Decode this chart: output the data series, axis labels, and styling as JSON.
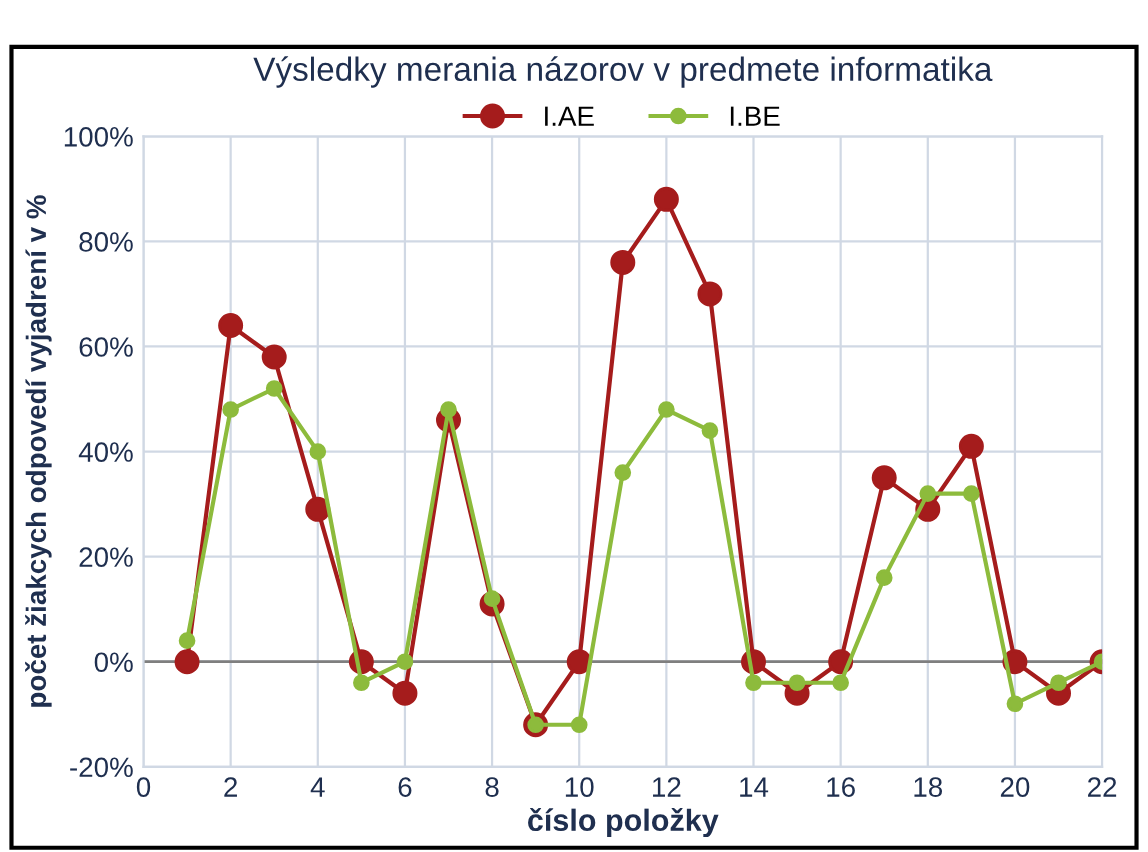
{
  "chart_data": {
    "type": "line",
    "title": "Výsledky merania názorov v predmete informatika",
    "xlabel": "číslo položky",
    "ylabel": "počet žiakcych odpovedí vyjadrení v %",
    "x": [
      1,
      2,
      3,
      4,
      5,
      6,
      7,
      8,
      9,
      10,
      11,
      12,
      13,
      14,
      15,
      16,
      17,
      18,
      19,
      20,
      21,
      22
    ],
    "series": [
      {
        "name": "I.AE",
        "color": "#a51c1c",
        "values": [
          0,
          64,
          58,
          29,
          0,
          -6,
          46,
          11,
          -12,
          0,
          76,
          88,
          70,
          0,
          -6,
          0,
          35,
          29,
          41,
          0,
          -6,
          0
        ]
      },
      {
        "name": "I.BE",
        "color": "#8dbb3c",
        "values": [
          4,
          48,
          52,
          40,
          -4,
          0,
          48,
          12,
          -12,
          -12,
          36,
          48,
          44,
          -4,
          -4,
          -4,
          16,
          32,
          32,
          -8,
          -4,
          0
        ]
      }
    ],
    "xlim": [
      0,
      22
    ],
    "xticks": [
      0,
      2,
      4,
      6,
      8,
      10,
      12,
      14,
      16,
      18,
      20,
      22
    ],
    "ylim": [
      -20,
      100
    ],
    "yticks": [
      {
        "value": -20,
        "label": "-20%"
      },
      {
        "value": 0,
        "label": "0%"
      },
      {
        "value": 20,
        "label": "20%"
      },
      {
        "value": 40,
        "label": "40%"
      },
      {
        "value": 60,
        "label": "60%"
      },
      {
        "value": 80,
        "label": "80%"
      },
      {
        "value": 100,
        "label": "100%"
      }
    ],
    "ref_lines": [
      {
        "axis": "y",
        "value": 0,
        "color": "#7f7f7f"
      }
    ],
    "grid": true,
    "legend": "top",
    "marker": "circle",
    "line_style": "solid"
  }
}
